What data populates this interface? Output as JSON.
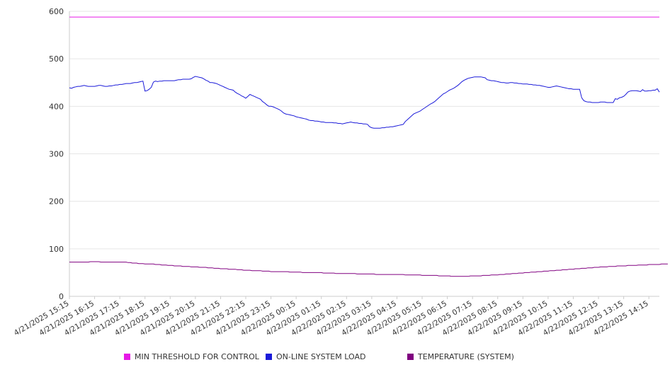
{
  "chart_data": {
    "type": "line",
    "title": "",
    "xlabel": "",
    "ylabel": "",
    "ylim": [
      0,
      600
    ],
    "yticks": [
      0,
      100,
      200,
      300,
      400,
      500,
      600
    ],
    "grid": true,
    "legend_position": "bottom",
    "x_start": "4/21/2025 15:15",
    "x_step_minutes": 5,
    "x_tick_labels": [
      "4/21/2025 15:15",
      "4/21/2025 16:15",
      "4/21/2025 17:15",
      "4/21/2025 18:15",
      "4/21/2025 19:15",
      "4/21/2025 20:15",
      "4/21/2025 21:15",
      "4/21/2025 22:15",
      "4/21/2025 23:15",
      "4/22/2025 00:15",
      "4/22/2025 01:15",
      "4/22/2025 02:15",
      "4/22/2025 03:15",
      "4/22/2025 04:15",
      "4/22/2025 05:15",
      "4/22/2025 06:15",
      "4/22/2025 07:15",
      "4/22/2025 08:15",
      "4/22/2025 09:15",
      "4/22/2025 10:15",
      "4/22/2025 11:15",
      "4/22/2025 12:15",
      "4/22/2025 13:15",
      "4/22/2025 14:15"
    ],
    "series": [
      {
        "name": "MIN THRESHOLD FOR CONTROL",
        "color": "#e619e6",
        "values": [
          588,
          588,
          588,
          588,
          588,
          588,
          588,
          588,
          588,
          588,
          588,
          588,
          588,
          588,
          588,
          588,
          588,
          588,
          588,
          588,
          588,
          588,
          588,
          588,
          588,
          588,
          588,
          588,
          588,
          588,
          588,
          588,
          588,
          588,
          588,
          588,
          588,
          588,
          588,
          588,
          588,
          588,
          588,
          588,
          588,
          588,
          588,
          588,
          588,
          588,
          588,
          588,
          588,
          588,
          588,
          588,
          588,
          588,
          588,
          588,
          588,
          588,
          588,
          588,
          588,
          588,
          588,
          588,
          588,
          588,
          588,
          588,
          588,
          588,
          588,
          588,
          588,
          588,
          588,
          588,
          588,
          588,
          588,
          588,
          588,
          588,
          588,
          588,
          588,
          588,
          588,
          588,
          588,
          588,
          588,
          588,
          588,
          588,
          588,
          588,
          588,
          588,
          588,
          588,
          588,
          588,
          588,
          588,
          588,
          588,
          588,
          588,
          588,
          588,
          588,
          588,
          588,
          588,
          588,
          588,
          588,
          588,
          588,
          588,
          588,
          588,
          588,
          588,
          588,
          588,
          588,
          588,
          588,
          588,
          588,
          588,
          588,
          588,
          588,
          588,
          588,
          588,
          588,
          588,
          588,
          588,
          588,
          588,
          588,
          588,
          588,
          588,
          588,
          588,
          588,
          588,
          588,
          588,
          588,
          588,
          588,
          588,
          588,
          588,
          588,
          588,
          588,
          588,
          588,
          588,
          588,
          588,
          588,
          588,
          588,
          588,
          588,
          588,
          588,
          588,
          588,
          588,
          588,
          588,
          588,
          588,
          588,
          588,
          588,
          588,
          588,
          588,
          588,
          588,
          588,
          588,
          588,
          588,
          588,
          588,
          588,
          588,
          588,
          588,
          588,
          588,
          588,
          588,
          588,
          588,
          588,
          588,
          588,
          588,
          588,
          588,
          588,
          588,
          588,
          588,
          588,
          588,
          588,
          588,
          588,
          588,
          588,
          588,
          588,
          588,
          588,
          588,
          588,
          588,
          588,
          588,
          588,
          588,
          588,
          588,
          588,
          588,
          588,
          588,
          588,
          588,
          588,
          588,
          588,
          588,
          588,
          588,
          588,
          588,
          588,
          588,
          588,
          588,
          588,
          588,
          588,
          588,
          588,
          588,
          588,
          588,
          588,
          588,
          588,
          588,
          588,
          588,
          588,
          588,
          588,
          588,
          588,
          588,
          588,
          588,
          588,
          588
        ]
      },
      {
        "name": "ON-LINE SYSTEM LOAD",
        "color": "#1a1ad9",
        "values": [
          439,
          438,
          440,
          441,
          442,
          442,
          443,
          444,
          443,
          442,
          442,
          442,
          442,
          443,
          444,
          444,
          443,
          442,
          442,
          443,
          443,
          444,
          445,
          445,
          446,
          446,
          447,
          448,
          448,
          448,
          449,
          450,
          450,
          451,
          452,
          453,
          432,
          433,
          436,
          440,
          451,
          453,
          452,
          453,
          453,
          454,
          454,
          454,
          454,
          454,
          454,
          455,
          456,
          456,
          457,
          457,
          457,
          457,
          458,
          461,
          463,
          462,
          461,
          460,
          458,
          455,
          453,
          450,
          450,
          449,
          448,
          446,
          444,
          442,
          440,
          438,
          436,
          435,
          434,
          430,
          427,
          425,
          422,
          420,
          417,
          421,
          425,
          423,
          421,
          419,
          417,
          415,
          410,
          407,
          403,
          400,
          400,
          399,
          397,
          395,
          393,
          390,
          386,
          384,
          383,
          382,
          381,
          380,
          378,
          377,
          376,
          375,
          374,
          373,
          371,
          370,
          370,
          369,
          369,
          368,
          367,
          367,
          366,
          366,
          366,
          366,
          365,
          365,
          364,
          364,
          363,
          364,
          365,
          366,
          367,
          366,
          365,
          365,
          364,
          364,
          363,
          363,
          362,
          357,
          355,
          354,
          354,
          354,
          354,
          355,
          355,
          356,
          356,
          357,
          357,
          358,
          359,
          360,
          361,
          362,
          368,
          372,
          376,
          380,
          384,
          386,
          388,
          390,
          393,
          396,
          399,
          402,
          405,
          407,
          410,
          414,
          418,
          422,
          426,
          428,
          431,
          434,
          436,
          438,
          441,
          444,
          448,
          452,
          455,
          457,
          459,
          460,
          461,
          462,
          462,
          462,
          462,
          461,
          460,
          456,
          455,
          454,
          454,
          453,
          452,
          451,
          450,
          450,
          449,
          449,
          450,
          450,
          449,
          449,
          448,
          448,
          447,
          447,
          447,
          446,
          446,
          445,
          445,
          444,
          444,
          443,
          442,
          441,
          440,
          440,
          441,
          442,
          443,
          442,
          441,
          440,
          439,
          438,
          437,
          437,
          436,
          436,
          436,
          436,
          418,
          412,
          410,
          409,
          409,
          408,
          408,
          408,
          408,
          409,
          409,
          409,
          408,
          408,
          408,
          408,
          416,
          415,
          418,
          419,
          421,
          425,
          430,
          432,
          433,
          433,
          433,
          432,
          431,
          435,
          432,
          432,
          433,
          433,
          434,
          434,
          437,
          430
        ]
      },
      {
        "name": "TEMPERATURE (SYSTEM)",
        "color": "#800080",
        "values": [
          72,
          72,
          72,
          72,
          72,
          72,
          72,
          72,
          72,
          72,
          73,
          73,
          73,
          73,
          73,
          72,
          72,
          72,
          72,
          72,
          72,
          72,
          72,
          72,
          72,
          72,
          72,
          72,
          71,
          71,
          70,
          70,
          70,
          69,
          69,
          69,
          68,
          68,
          68,
          68,
          68,
          67,
          67,
          67,
          66,
          66,
          66,
          65,
          65,
          65,
          64,
          64,
          64,
          64,
          63,
          63,
          63,
          63,
          62,
          62,
          62,
          62,
          61,
          61,
          61,
          61,
          60,
          60,
          60,
          59,
          59,
          59,
          58,
          58,
          58,
          58,
          57,
          57,
          57,
          57,
          56,
          56,
          56,
          55,
          55,
          55,
          55,
          54,
          54,
          54,
          54,
          54,
          53,
          53,
          53,
          53,
          52,
          52,
          52,
          52,
          52,
          52,
          52,
          52,
          52,
          51,
          51,
          51,
          51,
          51,
          51,
          50,
          50,
          50,
          50,
          50,
          50,
          50,
          50,
          50,
          50,
          49,
          49,
          49,
          49,
          49,
          49,
          48,
          48,
          48,
          48,
          48,
          48,
          48,
          48,
          48,
          48,
          47,
          47,
          47,
          47,
          47,
          47,
          47,
          47,
          47,
          46,
          46,
          46,
          46,
          46,
          46,
          46,
          46,
          46,
          46,
          46,
          46,
          46,
          46,
          45,
          45,
          45,
          45,
          45,
          45,
          45,
          45,
          44,
          44,
          44,
          44,
          44,
          44,
          44,
          44,
          43,
          43,
          43,
          43,
          43,
          43,
          42,
          42,
          42,
          42,
          42,
          42,
          42,
          42,
          42,
          43,
          43,
          43,
          43,
          43,
          43,
          44,
          44,
          44,
          44,
          45,
          45,
          45,
          45,
          46,
          46,
          46,
          47,
          47,
          47,
          48,
          48,
          48,
          49,
          49,
          49,
          50,
          50,
          50,
          51,
          51,
          51,
          52,
          52,
          52,
          53,
          53,
          53,
          54,
          54,
          54,
          55,
          55,
          55,
          56,
          56,
          56,
          57,
          57,
          57,
          58,
          58,
          58,
          59,
          59,
          59,
          60,
          60,
          60,
          61,
          61,
          61,
          62,
          62,
          62,
          62,
          63,
          63,
          63,
          63,
          64,
          64,
          64,
          64,
          64,
          65,
          65,
          65,
          65,
          65,
          66,
          66,
          66,
          66,
          66,
          67,
          67,
          67,
          67,
          67,
          67,
          68,
          68,
          68,
          68
        ]
      }
    ]
  }
}
